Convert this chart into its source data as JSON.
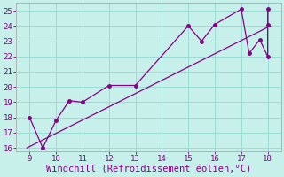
{
  "xlabel": "Windchill (Refroidissement éolien,°C)",
  "bg_color": "#c8f0eb",
  "line_color": "#880088",
  "x_data": [
    9,
    9.5,
    10,
    10.5,
    11,
    12,
    13,
    15,
    15.5,
    16,
    17,
    17.3,
    17.7,
    18,
    18,
    18
  ],
  "y_data": [
    18,
    16,
    17.8,
    19.1,
    19.0,
    20.1,
    20.1,
    24.0,
    23.0,
    24.1,
    25.1,
    22.2,
    23.1,
    22.0,
    25.1,
    24.1
  ],
  "trend_x": [
    8.9,
    18.1
  ],
  "trend_y": [
    16.0,
    24.0
  ],
  "xlim": [
    8.5,
    18.5
  ],
  "ylim": [
    15.8,
    25.5
  ],
  "xticks": [
    9,
    10,
    11,
    12,
    13,
    14,
    15,
    16,
    17,
    18
  ],
  "yticks": [
    16,
    17,
    18,
    19,
    20,
    21,
    22,
    23,
    24,
    25
  ],
  "grid_color": "#99ddd4",
  "marker_size": 2.5,
  "tick_fontsize": 6.5,
  "xlabel_fontsize": 7.5
}
